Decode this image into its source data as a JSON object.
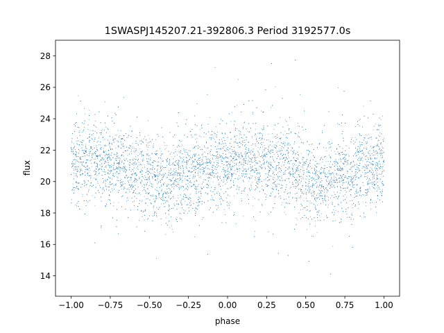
{
  "chart_data": {
    "type": "scatter",
    "title": "1SWASPJ145207.21-392806.3 Period 3192577.0s",
    "xlabel": "phase",
    "ylabel": "flux",
    "xlim": [
      -1.1,
      1.1
    ],
    "ylim": [
      12.7,
      29.0
    ],
    "x_ticks": [
      -1.0,
      -0.75,
      -0.5,
      -0.25,
      0.0,
      0.25,
      0.5,
      0.75,
      1.0
    ],
    "x_tick_labels": [
      "−1.00",
      "−0.75",
      "−0.50",
      "−0.25",
      "0.00",
      "0.25",
      "0.50",
      "0.75",
      "1.00"
    ],
    "y_ticks": [
      14,
      16,
      18,
      20,
      22,
      24,
      26,
      28
    ],
    "y_tick_labels": [
      "14",
      "16",
      "18",
      "20",
      "22",
      "24",
      "26",
      "28"
    ],
    "grid": false,
    "legend": "none",
    "marker_color": "#1f77b4",
    "series": [
      {
        "x_range": [
          -1.0,
          1.0
        ],
        "profile_phase": [
          -1.0,
          -0.9,
          -0.8,
          -0.7,
          -0.6,
          -0.5,
          -0.45,
          -0.4,
          -0.3,
          -0.2,
          -0.1,
          0.0,
          0.1,
          0.2,
          0.3,
          0.4,
          0.5,
          0.55,
          0.6,
          0.7,
          0.8,
          0.9,
          1.0
        ],
        "profile_median_flux": [
          21.2,
          21.3,
          21.2,
          21.1,
          20.9,
          20.3,
          19.9,
          19.9,
          20.3,
          20.6,
          20.8,
          21.1,
          21.3,
          21.2,
          21.1,
          20.9,
          20.4,
          19.9,
          19.9,
          20.3,
          20.6,
          20.8,
          21.1
        ],
        "typical_scatter": 1.3,
        "flux_extent": [
          13.5,
          28.2
        ]
      }
    ]
  }
}
